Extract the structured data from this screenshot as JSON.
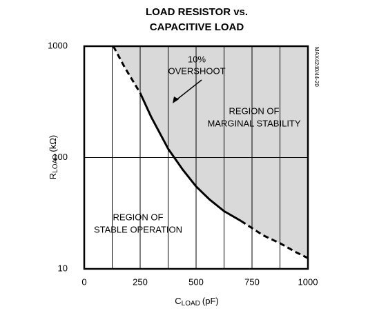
{
  "chart_data": {
    "type": "line",
    "title": [
      "LOAD RESISTOR vs.",
      "CAPACITIVE LOAD"
    ],
    "xlabel": {
      "main": "C",
      "sub": "LOAD",
      "unit": "(pF)"
    },
    "ylabel": {
      "main": "R",
      "sub": "LOAD",
      "unit": "(kΩ)"
    },
    "xlim": [
      0,
      1000
    ],
    "xticks": [
      0,
      250,
      500,
      750,
      1000
    ],
    "x_minor_ticks": [
      125,
      375,
      625,
      875
    ],
    "ylim": [
      10,
      1000
    ],
    "yticks": [
      10,
      100,
      1000
    ],
    "log_y": true,
    "grid": true,
    "shade_color": "#d9d9d9",
    "series": [
      {
        "style": "dashed",
        "color": "#000000",
        "x": [
          130,
          180,
          250
        ],
        "values": [
          1000,
          650,
          380
        ]
      },
      {
        "style": "solid",
        "color": "#000000",
        "x": [
          250,
          300,
          375,
          440,
          500,
          560,
          625,
          700
        ],
        "values": [
          380,
          230,
          120,
          78,
          55,
          42,
          33,
          27
        ]
      },
      {
        "style": "dashed",
        "color": "#000000",
        "x": [
          700,
          800,
          875,
          950,
          1000
        ],
        "values": [
          27,
          20,
          17,
          14,
          12.5
        ]
      }
    ],
    "annotations": {
      "overshoot": [
        "10%",
        "OVERSHOOT"
      ],
      "marginal": [
        "REGION OF",
        "MARGINAL STABILITY"
      ],
      "stable": [
        "REGION OF",
        "STABLE OPERATION"
      ],
      "code": "MAX4240/44-20"
    }
  }
}
